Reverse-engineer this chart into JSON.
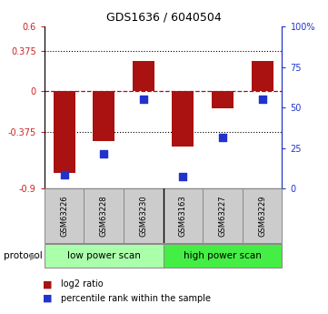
{
  "title": "GDS1636 / 6040504",
  "samples": [
    "GSM63226",
    "GSM63228",
    "GSM63230",
    "GSM63163",
    "GSM63227",
    "GSM63229"
  ],
  "log2_ratio": [
    -0.76,
    -0.46,
    0.285,
    -0.51,
    -0.155,
    0.285
  ],
  "percentile_rank": [
    8.5,
    21.5,
    55.0,
    7.5,
    31.5,
    55.0
  ],
  "left_ylim": [
    -0.9,
    0.6
  ],
  "right_ylim": [
    0,
    100
  ],
  "left_yticks": [
    -0.9,
    -0.375,
    0,
    0.375,
    0.6
  ],
  "left_yticklabels": [
    "-0.9",
    "-0.375",
    "0",
    "0.375",
    "0.6"
  ],
  "right_yticks": [
    0,
    25,
    50,
    75,
    100
  ],
  "right_yticklabels": [
    "0",
    "25",
    "50",
    "75",
    "100%"
  ],
  "dotted_yticks": [
    -0.375,
    0.375
  ],
  "bar_color": "#aa1111",
  "dot_color": "#2233cc",
  "protocol_group1_color": "#aaffaa",
  "protocol_group2_color": "#44ee44",
  "legend_items": [
    {
      "label": "log2 ratio",
      "color": "#aa1111"
    },
    {
      "label": "percentile rank within the sample",
      "color": "#2233cc"
    }
  ],
  "background_color": "#ffffff",
  "bar_width": 0.55,
  "dot_size": 40,
  "title_fontsize": 9,
  "tick_fontsize": 7,
  "sample_fontsize": 6,
  "protocol_fontsize": 7.5,
  "legend_fontsize": 7
}
